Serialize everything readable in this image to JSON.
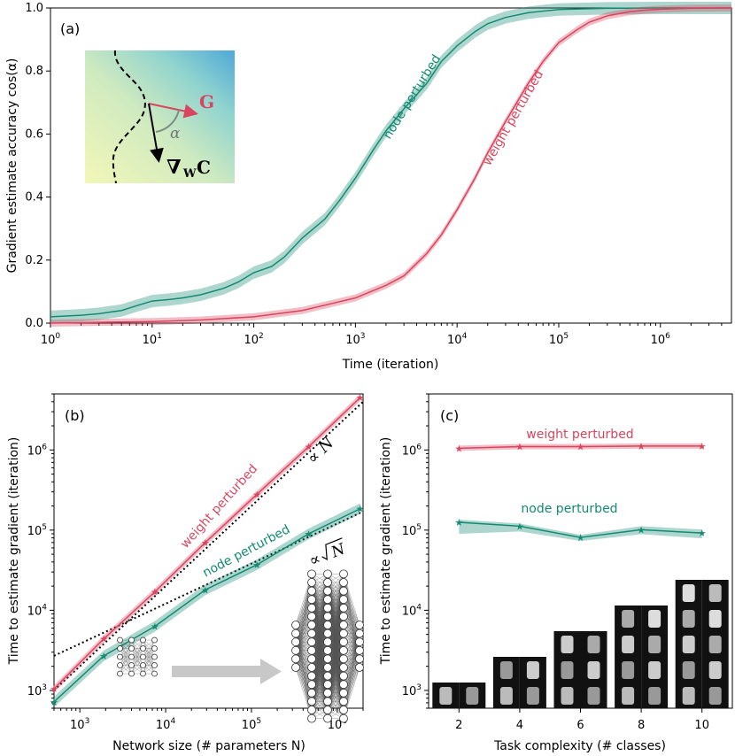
{
  "panel_a": {
    "label": "(a)",
    "xlabel": "Time (iteration)",
    "ylabel": "Gradient estimate accuracy cos(α)",
    "inset": {
      "g_label": "G",
      "alpha_label": "α",
      "grad_label": "∇",
      "grad_sub": "W",
      "grad_tail": "C"
    }
  },
  "panel_b": {
    "label": "(b)",
    "xlabel": "Network size (# parameters N)",
    "ylabel": "Time to estimate gradient (iteration)",
    "propto_n": "∝ N",
    "propto_sqrt_prefix": "∝",
    "propto_sqrt_n": "N"
  },
  "panel_c": {
    "label": "(c)",
    "xlabel": "Task complexity (# classes)",
    "ylabel": "Time to estimate gradient (iteration)"
  },
  "chart_data": [
    {
      "type": "line",
      "panel": "a",
      "xscale": "log",
      "xlim": [
        1,
        5000000
      ],
      "ylim": [
        0,
        1.0
      ],
      "xticks": [
        "10^0",
        "10^1",
        "10^2",
        "10^3",
        "10^4",
        "10^5",
        "10^6"
      ],
      "yticks": [
        "0.0",
        "0.2",
        "0.4",
        "0.6",
        "0.8",
        "1.0"
      ],
      "series": [
        {
          "name": "node perturbed",
          "color": "#148a72",
          "x": [
            1,
            2,
            3,
            5,
            7,
            10,
            15,
            20,
            30,
            50,
            70,
            100,
            150,
            200,
            300,
            500,
            700,
            1000,
            1500,
            2000,
            3000,
            5000,
            7000,
            10000,
            15000,
            20000,
            30000,
            50000,
            70000,
            100000,
            300000,
            1000000,
            5000000
          ],
          "y": [
            0.02,
            0.025,
            0.03,
            0.04,
            0.055,
            0.07,
            0.075,
            0.08,
            0.09,
            0.11,
            0.13,
            0.16,
            0.18,
            0.21,
            0.27,
            0.33,
            0.39,
            0.46,
            0.55,
            0.61,
            0.68,
            0.76,
            0.83,
            0.88,
            0.925,
            0.95,
            0.97,
            0.985,
            0.99,
            0.995,
            0.999,
            1.0,
            1.0
          ]
        },
        {
          "name": "weight perturbed",
          "color": "#d9455e",
          "x": [
            1,
            10,
            30,
            100,
            300,
            1000,
            2000,
            3000,
            5000,
            7000,
            10000,
            15000,
            20000,
            30000,
            50000,
            70000,
            100000,
            150000,
            200000,
            300000,
            500000,
            700000,
            1000000,
            2000000,
            5000000
          ],
          "y": [
            0.0,
            0.005,
            0.01,
            0.02,
            0.04,
            0.08,
            0.12,
            0.15,
            0.22,
            0.28,
            0.36,
            0.46,
            0.54,
            0.64,
            0.76,
            0.83,
            0.89,
            0.93,
            0.955,
            0.975,
            0.988,
            0.993,
            0.996,
            0.999,
            1.0
          ]
        }
      ]
    },
    {
      "type": "line",
      "panel": "b",
      "xscale": "log",
      "yscale": "log",
      "xlim": [
        500,
        2000000
      ],
      "ylim": [
        600,
        5000000
      ],
      "xticks": [
        "10^3",
        "10^4",
        "10^5",
        "10^6"
      ],
      "yticks": [
        "10^3",
        "10^4",
        "10^5",
        "10^6"
      ],
      "series": [
        {
          "name": "weight perturbed",
          "color": "#d9455e",
          "x": [
            500,
            1900,
            7500,
            29000,
            116000,
            465000,
            1850000
          ],
          "y": [
            1050,
            4400,
            17000,
            70000,
            280000,
            1100000,
            4500000
          ]
        },
        {
          "name": "node perturbed",
          "color": "#148a72",
          "x": [
            500,
            1900,
            7500,
            29000,
            116000,
            465000,
            1850000
          ],
          "y": [
            720,
            2700,
            6300,
            18000,
            37000,
            90000,
            185000
          ]
        }
      ]
    },
    {
      "type": "line",
      "panel": "c",
      "yscale": "log",
      "xlim": [
        1,
        11
      ],
      "ylim": [
        600,
        5000000
      ],
      "categories": [
        2,
        4,
        6,
        8,
        10
      ],
      "xticks": [
        "2",
        "4",
        "6",
        "8",
        "10"
      ],
      "yticks": [
        "10^3",
        "10^4",
        "10^5",
        "10^6"
      ],
      "series": [
        {
          "name": "weight perturbed",
          "color": "#d9455e",
          "values": [
            1050000,
            1100000,
            1100000,
            1120000,
            1120000
          ]
        },
        {
          "name": "node perturbed",
          "color": "#148a72",
          "values": [
            125000,
            112000,
            81000,
            101000,
            92000
          ]
        }
      ]
    }
  ]
}
